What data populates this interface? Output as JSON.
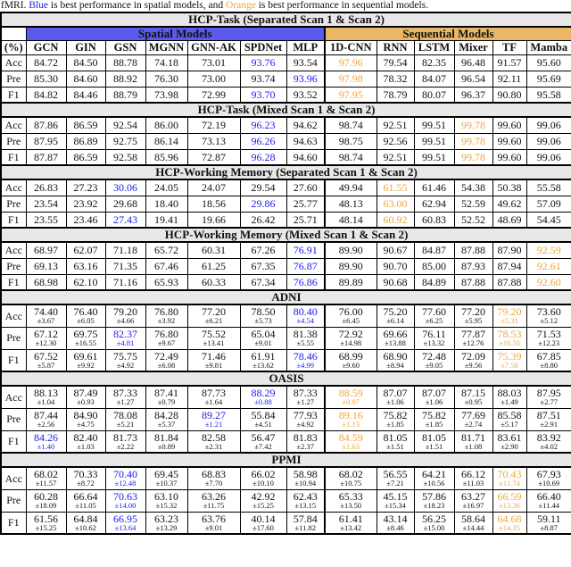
{
  "caption": {
    "prefix": "fMRI. ",
    "blue_word": "Blue",
    "middle": " is best performance in spatial models, and ",
    "orange_word": "Orange",
    "suffix": " is best performance in sequential models."
  },
  "colors": {
    "spatial_header_bg": "#5A5AEB",
    "sequential_header_bg": "#E9B765",
    "best_spatial_text": "#1A1AF0",
    "best_sequential_text": "#F0A53C",
    "section_header_bg": "#E8E8E8"
  },
  "group_headers": {
    "spatial": "Spatial Models",
    "sequential": "Sequential Models"
  },
  "columns": [
    "(%)",
    "GCN",
    "GIN",
    "GSN",
    "MGNN",
    "GNN-AK",
    "SPDNet",
    "MLP",
    "1D-CNN",
    "RNN",
    "LSTM",
    "Mixer",
    "TF",
    "Mamba"
  ],
  "sections": [
    {
      "title": "HCP-Task (Separated Scan 1 & Scan 2)",
      "std": false,
      "rows": [
        {
          "label": "Acc",
          "values": [
            "84.72",
            "84.50",
            "88.78",
            "74.18",
            "73.01",
            "93.76",
            "93.54",
            "97.96",
            "79.54",
            "82.35",
            "96.48",
            "91.57",
            "95.60"
          ],
          "blue": 5,
          "orange": 7
        },
        {
          "label": "Pre",
          "values": [
            "85.30",
            "84.60",
            "88.92",
            "76.30",
            "73.00",
            "93.74",
            "93.96",
            "97.98",
            "78.32",
            "84.07",
            "96.54",
            "92.11",
            "95.69"
          ],
          "blue": 6,
          "orange": 7
        },
        {
          "label": "F1",
          "values": [
            "84.82",
            "84.46",
            "88.79",
            "73.98",
            "72.99",
            "93.70",
            "93.52",
            "97.95",
            "78.79",
            "80.07",
            "96.37",
            "90.80",
            "95.58"
          ],
          "blue": 5,
          "orange": 7
        }
      ]
    },
    {
      "title": "HCP-Task (Mixed Scan 1 & Scan 2)",
      "std": false,
      "rows": [
        {
          "label": "Acc",
          "values": [
            "87.86",
            "86.59",
            "92.54",
            "86.00",
            "72.19",
            "96.23",
            "94.62",
            "98.74",
            "92.51",
            "99.51",
            "99.78",
            "99.60",
            "99.06"
          ],
          "blue": 5,
          "orange": 10
        },
        {
          "label": "Pre",
          "values": [
            "87.95",
            "86.89",
            "92.75",
            "86.14",
            "73.13",
            "96.26",
            "94.63",
            "98.75",
            "92.56",
            "99.51",
            "99.78",
            "99.60",
            "99.06"
          ],
          "blue": 5,
          "orange": 10
        },
        {
          "label": "F1",
          "values": [
            "87.87",
            "86.59",
            "92.58",
            "85.96",
            "72.87",
            "96.28",
            "94.60",
            "98.74",
            "92.51",
            "99.51",
            "99.78",
            "99.60",
            "99.06"
          ],
          "blue": 5,
          "orange": 10
        }
      ]
    },
    {
      "title": "HCP-Working Memory (Separated Scan 1 & Scan 2)",
      "std": false,
      "rows": [
        {
          "label": "Acc",
          "values": [
            "26.83",
            "27.23",
            "30.06",
            "24.05",
            "24.07",
            "29.54",
            "27.60",
            "49.94",
            "61.55",
            "61.46",
            "54.38",
            "50.38",
            "55.58"
          ],
          "blue": 2,
          "orange": 8
        },
        {
          "label": "Pre",
          "values": [
            "23.54",
            "23.92",
            "29.68",
            "18.40",
            "18.56",
            "29.86",
            "25.77",
            "48.13",
            "63.00",
            "62.94",
            "52.59",
            "49.62",
            "57.09"
          ],
          "blue": 5,
          "orange": 8
        },
        {
          "label": "F1",
          "values": [
            "23.55",
            "23.46",
            "27.43",
            "19.41",
            "19.66",
            "26.42",
            "25.71",
            "48.14",
            "60.92",
            "60.83",
            "52.52",
            "48.69",
            "54.45"
          ],
          "blue": 2,
          "orange": 8
        }
      ]
    },
    {
      "title": "HCP-Working Memory (Mixed Scan 1 & Scan 2)",
      "std": false,
      "rows": [
        {
          "label": "Acc",
          "values": [
            "68.97",
            "62.07",
            "71.18",
            "65.72",
            "60.31",
            "67.26",
            "76.91",
            "89.90",
            "90.67",
            "84.87",
            "87.88",
            "87.90",
            "92.59"
          ],
          "blue": 6,
          "orange": 12
        },
        {
          "label": "Pre",
          "values": [
            "69.13",
            "63.16",
            "71.35",
            "67.46",
            "61.25",
            "67.35",
            "76.87",
            "89.90",
            "90.70",
            "85.00",
            "87.93",
            "87.94",
            "92.61"
          ],
          "blue": 6,
          "orange": 12
        },
        {
          "label": "F1",
          "values": [
            "68.98",
            "62.10",
            "71.16",
            "65.93",
            "60.33",
            "67.34",
            "76.86",
            "89.89",
            "90.68",
            "84.89",
            "87.88",
            "87.88",
            "92.60"
          ],
          "blue": 6,
          "orange": 12
        }
      ]
    },
    {
      "title": "ADNI",
      "std": true,
      "rows": [
        {
          "label": "Acc",
          "values": [
            "74.40",
            "76.40",
            "79.20",
            "76.80",
            "77.20",
            "78.50",
            "80.40",
            "76.00",
            "75.20",
            "77.60",
            "77.20",
            "79.20",
            "73.60"
          ],
          "stds": [
            "3.67",
            "6.05",
            "4.66",
            "3.92",
            "6.21",
            "5.73",
            "4.54",
            "6.45",
            "6.14",
            "6.25",
            "5.95",
            "5.31",
            "5.12"
          ],
          "blue": 6,
          "orange": 11
        },
        {
          "label": "Pre",
          "values": [
            "67.12",
            "69.75",
            "82.37",
            "76.80",
            "75.52",
            "65.04",
            "81.38",
            "72.92",
            "69.66",
            "76.11",
            "77.87",
            "78.53",
            "71.53"
          ],
          "stds": [
            "12.30",
            "16.55",
            "4.81",
            "9.67",
            "13.41",
            "9.01",
            "5.55",
            "14.98",
            "13.88",
            "13.32",
            "12.76",
            "10.50",
            "12.23"
          ],
          "blue": 2,
          "orange": 11
        },
        {
          "label": "F1",
          "values": [
            "67.52",
            "69.61",
            "75.75",
            "72.49",
            "71.46",
            "61.91",
            "78.46",
            "68.99",
            "68.90",
            "72.48",
            "72.09",
            "75.39",
            "67.85"
          ],
          "stds": [
            "5.87",
            "9.92",
            "4.92",
            "6.08",
            "9.81",
            "13.62",
            "4.99",
            "9.60",
            "8.94",
            "9.05",
            "9.56",
            "7.58",
            "8.80"
          ],
          "blue": 6,
          "orange": 11
        }
      ]
    },
    {
      "title": "OASIS",
      "std": true,
      "rows": [
        {
          "label": "Acc",
          "values": [
            "88.13",
            "87.49",
            "87.33",
            "87.41",
            "87.73",
            "88.29",
            "87.33",
            "88.59",
            "87.07",
            "87.07",
            "87.15",
            "88.03",
            "87.95"
          ],
          "stds": [
            "1.04",
            "0.93",
            "1.27",
            "0.79",
            "1.64",
            "0.88",
            "1.27",
            "0.97",
            "1.06",
            "1.06",
            "0.95",
            "1.49",
            "2.77"
          ],
          "blue": 5,
          "orange": 7
        },
        {
          "label": "Pre",
          "values": [
            "87.44",
            "84.90",
            "78.08",
            "84.28",
            "89.27",
            "55.84",
            "77.93",
            "89.16",
            "75.82",
            "75.82",
            "77.69",
            "85.58",
            "87.51"
          ],
          "stds": [
            "2.56",
            "4.75",
            "5.21",
            "5.37",
            "1.21",
            "4.51",
            "4.92",
            "1.13",
            "1.85",
            "1.85",
            "2.74",
            "5.17",
            "2.91"
          ],
          "blue": 4,
          "orange": 7
        },
        {
          "label": "F1",
          "values": [
            "84.26",
            "82.40",
            "81.73",
            "81.84",
            "82.58",
            "56.47",
            "81.83",
            "84.59",
            "81.05",
            "81.05",
            "81.71",
            "83.61",
            "83.92"
          ],
          "stds": [
            "1.40",
            "1.03",
            "2.22",
            "0.89",
            "2.31",
            "7.42",
            "2.37",
            "1.63",
            "1.51",
            "1.51",
            "1.08",
            "2.90",
            "4.02"
          ],
          "blue": 0,
          "orange": 7
        }
      ]
    },
    {
      "title": "PPMI",
      "std": true,
      "rows": [
        {
          "label": "Acc",
          "values": [
            "68.02",
            "70.33",
            "70.40",
            "69.45",
            "68.83",
            "66.02",
            "58.98",
            "68.02",
            "56.55",
            "64.21",
            "66.12",
            "70.43",
            "67.93"
          ],
          "stds": [
            "11.57",
            "8.72",
            "12.48",
            "10.37",
            "7.70",
            "10.10",
            "10.94",
            "10.75",
            "7.21",
            "10.56",
            "11.03",
            "11.74",
            "10.69"
          ],
          "blue": 2,
          "orange": 11
        },
        {
          "label": "Pre",
          "values": [
            "60.28",
            "66.64",
            "70.63",
            "63.10",
            "63.26",
            "42.92",
            "62.43",
            "65.33",
            "45.15",
            "57.86",
            "63.27",
            "66.59",
            "66.40"
          ],
          "stds": [
            "18.09",
            "11.05",
            "14.00",
            "15.32",
            "11.75",
            "15.25",
            "13.15",
            "13.50",
            "15.34",
            "18.23",
            "16.97",
            "13.26",
            "11.44"
          ],
          "blue": 2,
          "orange": 11
        },
        {
          "label": "F1",
          "values": [
            "61.56",
            "64.84",
            "66.95",
            "63.23",
            "63.76",
            "40.14",
            "57.84",
            "61.41",
            "43.14",
            "56.25",
            "58.64",
            "64.68",
            "59.11"
          ],
          "stds": [
            "15.25",
            "10.62",
            "13.64",
            "13.29",
            "9.01",
            "17.60",
            "11.82",
            "13.42",
            "8.46",
            "15.00",
            "14.44",
            "14.35",
            "8.87"
          ],
          "blue": 2,
          "orange": 11
        }
      ]
    }
  ]
}
